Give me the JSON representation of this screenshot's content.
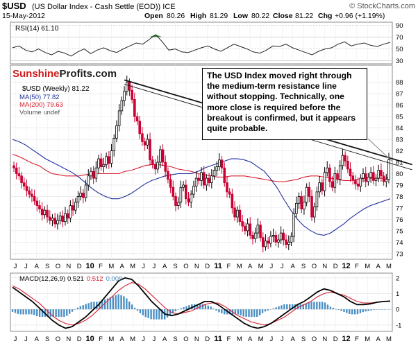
{
  "header": {
    "symbol": "$USD",
    "description": "(US Dollar Index - Cash Settle (EOD)) ICE",
    "watermark": "© StockCharts.com",
    "date": "15-May-2012",
    "open_label": "Open",
    "open": "80.26",
    "high_label": "High",
    "high": "81.29",
    "low_label": "Low",
    "low": "80.22",
    "close_label": "Close",
    "close": "81.22",
    "chg_label": "Chg",
    "chg": "+0.96 (+1.19%)"
  },
  "logo": {
    "part1": "Sunshine",
    "part2": "Profits.com"
  },
  "callout": "The USD Index moved right through the medium-term resistance line without stopping. Technically, one more close is required before the breakout is confirmed, but it appears quite probable.",
  "colors": {
    "up": "#000000",
    "down": "#cc0033",
    "ma50": "#1f2f9c",
    "ma200": "#d81f2f",
    "hist": "#4a8fc4",
    "rsi_fill": "#3d8a3d"
  },
  "chart_data": [
    {
      "type": "line",
      "panel": "RSI",
      "legend": "RSI(14) 61.10",
      "ylim": [
        25,
        95
      ],
      "ticks": [
        90,
        70,
        50,
        30
      ],
      "series": [
        {
          "name": "RSI(14)",
          "values": [
            52,
            55,
            48,
            45,
            50,
            44,
            40,
            46,
            43,
            38,
            45,
            50,
            42,
            48,
            52,
            47,
            44,
            50,
            55,
            60,
            58,
            66,
            74,
            62,
            48,
            50,
            45,
            44,
            48,
            52,
            55,
            50,
            46,
            52,
            58,
            54,
            50,
            45,
            43,
            48,
            55,
            54,
            58,
            52,
            48,
            44,
            40,
            46,
            50,
            52,
            58,
            62,
            55,
            58,
            60,
            56,
            54,
            58,
            61
          ]
        }
      ]
    },
    {
      "type": "candlestick",
      "panel": "Price",
      "legend": [
        "$USD (Weekly) 81.22",
        "MA(50) 77.82",
        "MA(200) 79.63",
        "Volume undef"
      ],
      "ylim": [
        72.5,
        89.5
      ],
      "y_ticks": [
        73,
        74,
        75,
        76,
        77,
        78,
        79,
        80,
        81,
        82,
        83,
        84,
        85,
        86,
        87,
        88
      ],
      "x_labels": [
        "J",
        "J",
        "A",
        "S",
        "O",
        "N",
        "D",
        "10",
        "F",
        "M",
        "A",
        "M",
        "J",
        "J",
        "A",
        "S",
        "O",
        "N",
        "D",
        "11",
        "F",
        "M",
        "A",
        "M",
        "J",
        "J",
        "A",
        "S",
        "O",
        "N",
        "D",
        "12",
        "F",
        "M",
        "A",
        "M"
      ],
      "close": [
        80.5,
        80.0,
        79.8,
        79.2,
        78.9,
        78.5,
        78.2,
        78.0,
        77.6,
        77.2,
        76.9,
        76.4,
        76.8,
        76.2,
        75.9,
        76.1,
        75.6,
        75.9,
        76.3,
        75.8,
        76.5,
        76.1,
        77.2,
        76.8,
        77.5,
        78.0,
        78.3,
        77.9,
        79.0,
        79.8,
        80.2,
        79.6,
        80.5,
        81.3,
        80.6,
        80.8,
        81.5,
        80.9,
        82.0,
        83.1,
        84.2,
        85.5,
        86.4,
        87.2,
        88.0,
        87.3,
        86.5,
        85.0,
        84.6,
        83.5,
        82.8,
        82.5,
        83.0,
        81.2,
        80.8,
        80.4,
        81.0,
        82.1,
        81.0,
        80.2,
        79.5,
        78.8,
        78.0,
        77.2,
        77.5,
        78.8,
        79.0,
        77.8,
        77.5,
        78.2,
        78.9,
        79.6,
        79.4,
        80.1,
        79.0,
        79.6,
        79.2,
        79.8,
        80.3,
        80.6,
        81.2,
        80.5,
        79.2,
        78.4,
        78.2,
        77.0,
        76.2,
        76.8,
        75.8,
        75.4,
        75.0,
        75.6,
        74.6,
        74.3,
        74.8,
        75.5,
        74.4,
        73.6,
        74.1,
        73.9,
        74.5,
        74.6,
        74.0,
        74.2,
        74.8,
        74.2,
        73.8,
        74.0,
        74.5,
        76.5,
        77.4,
        78.0,
        76.9,
        77.5,
        78.8,
        78.0,
        76.2,
        77.1,
        78.4,
        79.2,
        78.5,
        80.1,
        80.5,
        79.3,
        78.8,
        80.0,
        79.5,
        80.7,
        81.6,
        81.1,
        80.4,
        79.8,
        79.4,
        79.1,
        78.9,
        79.6,
        80.0,
        79.3,
        79.7,
        80.1,
        79.4,
        79.6,
        80.3,
        79.8,
        79.3,
        79.5,
        81.22
      ],
      "ma50": [
        83.0,
        82.8,
        82.5,
        82.1,
        81.7,
        81.3,
        81.0,
        80.7,
        80.4,
        80.1,
        79.7,
        79.2,
        78.7,
        78.3,
        78.0,
        77.8,
        77.8,
        78.0,
        78.3,
        78.7,
        79.1,
        79.4,
        79.6,
        79.8,
        79.9,
        80.0,
        80.0,
        80.0,
        80.2,
        80.5,
        80.7,
        80.9,
        81.1,
        81.3,
        81.3,
        81.2,
        81.0,
        80.6,
        80.2,
        79.5,
        78.7,
        77.7,
        76.8,
        76.0,
        75.4,
        75.0,
        74.7,
        74.6,
        74.8,
        75.2,
        75.6,
        76.1,
        76.5,
        76.9,
        77.2,
        77.4,
        77.6,
        77.8
      ],
      "ma200": [
        81.7,
        81.5,
        81.2,
        80.9,
        80.7,
        80.3,
        80.0,
        79.9,
        79.8,
        79.8,
        79.8,
        79.9,
        80.0,
        80.0,
        80.0,
        80.0,
        80.0,
        80.2,
        80.3,
        80.5,
        80.7,
        80.8,
        80.8,
        80.7,
        80.6,
        80.4,
        80.3,
        80.2,
        80.0,
        79.9,
        79.8,
        79.7,
        79.7,
        79.8,
        79.8,
        79.8,
        79.7,
        79.6,
        79.5,
        79.4,
        79.3,
        79.3,
        79.4,
        79.5,
        79.7,
        79.8,
        79.8,
        79.7,
        79.6,
        79.5,
        79.4,
        79.4,
        79.5,
        79.6,
        79.6,
        79.6,
        79.6,
        79.63
      ],
      "resistance_line": {
        "start": [
          43,
          88.2
        ],
        "end": [
          147,
          80.7
        ]
      }
    },
    {
      "type": "line",
      "panel": "MACD",
      "legend": [
        "MACD(12,26,9)",
        "0.521",
        "0.512",
        "0.009"
      ],
      "ylim": [
        -1.4,
        2.3
      ],
      "y_ticks": [
        2,
        1,
        0,
        -1
      ],
      "series": [
        {
          "name": "MACD(12,26,9)",
          "values": [
            1.4,
            1.1,
            0.8,
            0.5,
            0.1,
            -0.3,
            -0.7,
            -1.0,
            -1.2,
            -1.1,
            -0.8,
            -0.5,
            -0.1,
            0.3,
            0.8,
            1.3,
            1.8,
            2.0,
            1.9,
            1.5,
            1.0,
            0.5,
            0.1,
            -0.3,
            -0.4,
            -0.3,
            -0.1,
            0.1,
            0.3,
            0.5,
            0.5,
            0.3,
            0.0,
            -0.3,
            -0.6,
            -0.9,
            -1.1,
            -1.2,
            -1.1,
            -0.9,
            -0.6,
            -0.3,
            0.0,
            0.3,
            0.5,
            0.8,
            1.1,
            1.3,
            1.2,
            1.0,
            0.8,
            0.5,
            0.3,
            0.3,
            0.35,
            0.45,
            0.5,
            0.52
          ]
        },
        {
          "name": "Signal",
          "values": [
            1.5,
            1.3,
            1.0,
            0.7,
            0.4,
            0.0,
            -0.4,
            -0.7,
            -0.9,
            -1.0,
            -0.9,
            -0.7,
            -0.4,
            0.0,
            0.4,
            0.8,
            1.2,
            1.5,
            1.7,
            1.6,
            1.3,
            0.9,
            0.5,
            0.1,
            -0.2,
            -0.3,
            -0.2,
            -0.1,
            0.1,
            0.3,
            0.4,
            0.4,
            0.2,
            -0.1,
            -0.4,
            -0.6,
            -0.8,
            -0.9,
            -1.0,
            -0.9,
            -0.7,
            -0.5,
            -0.2,
            0.1,
            0.3,
            0.5,
            0.8,
            1.0,
            1.1,
            1.0,
            0.9,
            0.7,
            0.5,
            0.4,
            0.4,
            0.45,
            0.5,
            0.51
          ]
        }
      ],
      "x_labels": [
        "J",
        "J",
        "A",
        "S",
        "O",
        "N",
        "D",
        "10",
        "F",
        "M",
        "A",
        "M",
        "J",
        "J",
        "A",
        "S",
        "O",
        "N",
        "D",
        "11",
        "F",
        "M",
        "A",
        "M",
        "J",
        "J",
        "A",
        "S",
        "O",
        "N",
        "D",
        "12",
        "F",
        "M",
        "A",
        "M"
      ]
    }
  ]
}
